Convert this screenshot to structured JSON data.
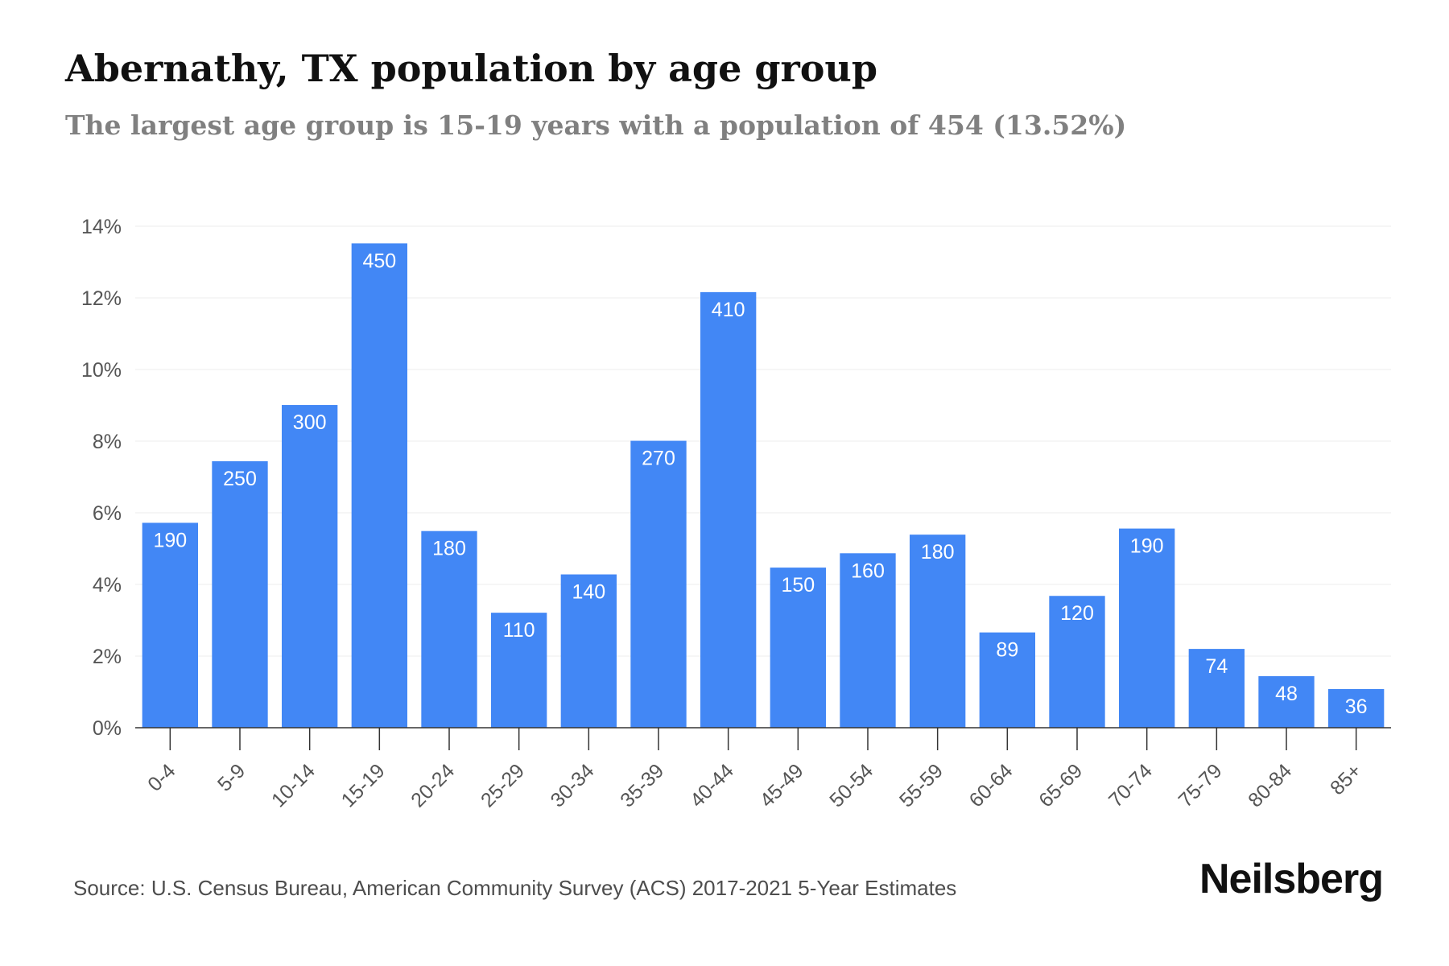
{
  "header": {
    "title": "Abernathy, TX population by age group",
    "subtitle": "The largest age group is 15-19 years with a population of 454 (13.52%)"
  },
  "footer": {
    "source": "Source: U.S. Census Bureau, American Community Survey (ACS) 2017-2021 5-Year Estimates",
    "brand": "Neilsberg"
  },
  "chart_data": {
    "type": "bar",
    "categories": [
      "0-4",
      "5-9",
      "10-14",
      "15-19",
      "20-24",
      "25-29",
      "30-34",
      "35-39",
      "40-44",
      "45-49",
      "50-54",
      "55-59",
      "60-64",
      "65-69",
      "70-74",
      "75-79",
      "80-84",
      "85+"
    ],
    "values": [
      5.72,
      7.44,
      9.01,
      13.52,
      5.49,
      3.21,
      4.28,
      8.01,
      12.16,
      4.47,
      4.87,
      5.39,
      2.66,
      3.68,
      5.56,
      2.2,
      1.44,
      1.08
    ],
    "data_labels": [
      "190",
      "250",
      "300",
      "450",
      "180",
      "110",
      "140",
      "270",
      "410",
      "150",
      "160",
      "180",
      "89",
      "120",
      "190",
      "74",
      "48",
      "36"
    ],
    "yticks": [
      "0%",
      "2%",
      "4%",
      "6%",
      "8%",
      "10%",
      "12%",
      "14%"
    ],
    "ylim": [
      0,
      14
    ],
    "grid": true,
    "colors": {
      "bar": "#4287f5",
      "label": "#ffffff",
      "grid": "#ececec",
      "axis": "#333333",
      "tick_text": "#555555"
    }
  }
}
